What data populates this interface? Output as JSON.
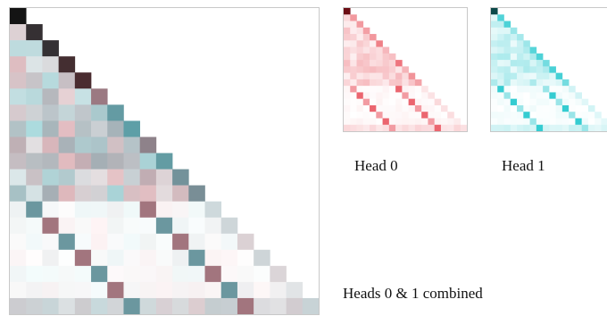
{
  "labels": {
    "head0": "Head 0",
    "head1": "Head 1",
    "combined": "Heads 0 & 1 combined"
  },
  "colors": {
    "head0": "#e84a55",
    "head1": "#1ec6cc",
    "head0_dark": "#6b0d14",
    "head1_dark": "#0d4a4a",
    "background": "#ffffff",
    "frame": "#c8c8c8"
  },
  "matrix_size": 19,
  "diagonal_offsets": [
    4,
    11
  ],
  "heads": [
    {
      "name": "head0"
    },
    {
      "name": "head1"
    }
  ]
}
